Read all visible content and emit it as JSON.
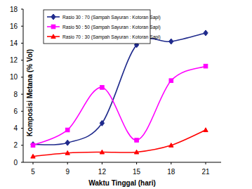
{
  "chart_data": {
    "type": "line",
    "x_label": "Waktu Tinggal (hari)",
    "y_label": "Komposisi Metana (% Vol)",
    "categories": [
      "5",
      "9",
      "12",
      "15",
      "18",
      "21"
    ],
    "series": [
      {
        "name": "Rasio 30 : 70 (Sampah Sayuran : Kotoran Sapi)",
        "color": "#1f2a8c",
        "marker": "diamond",
        "values": [
          2.1,
          2.3,
          4.6,
          13.8,
          14.2,
          15.2
        ]
      },
      {
        "name": "Rasio 50 : 50 (Sampah Sayuran : Kotoran Sapi)",
        "color": "#ff00ff",
        "marker": "square",
        "values": [
          2.0,
          3.8,
          8.8,
          2.6,
          9.6,
          11.3
        ]
      },
      {
        "name": "Rasio 70 : 30 (Sampah Sayuran : Kotoran Sapi)",
        "color": "#ff0000",
        "marker": "triangle",
        "values": [
          0.7,
          1.1,
          1.2,
          1.2,
          2.0,
          3.8
        ]
      }
    ],
    "ylim": [
      0,
      18
    ],
    "yticks": [
      0,
      2,
      4,
      6,
      8,
      10,
      12,
      14,
      16,
      18
    ],
    "grid": false,
    "legend": "upper left"
  }
}
